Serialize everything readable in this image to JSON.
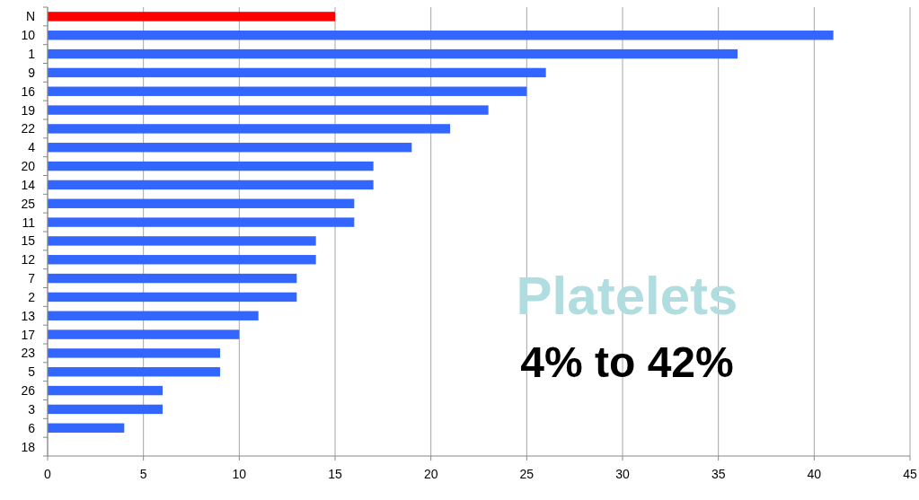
{
  "chart_data": {
    "type": "bar",
    "orientation": "horizontal",
    "categories": [
      "N",
      "10",
      "1",
      "9",
      "16",
      "19",
      "22",
      "4",
      "20",
      "14",
      "25",
      "11",
      "15",
      "12",
      "7",
      "2",
      "13",
      "17",
      "23",
      "5",
      "26",
      "3",
      "6",
      "18"
    ],
    "values": [
      15,
      41,
      36,
      26,
      25,
      23,
      21,
      19,
      17,
      17,
      16,
      16,
      14,
      14,
      13,
      13,
      11,
      10,
      9,
      9,
      6,
      6,
      4,
      0
    ],
    "colors": [
      "#ff0000",
      "#3366ff",
      "#3366ff",
      "#3366ff",
      "#3366ff",
      "#3366ff",
      "#3366ff",
      "#3366ff",
      "#3366ff",
      "#3366ff",
      "#3366ff",
      "#3366ff",
      "#3366ff",
      "#3366ff",
      "#3366ff",
      "#3366ff",
      "#3366ff",
      "#3366ff",
      "#3366ff",
      "#3366ff",
      "#3366ff",
      "#3366ff",
      "#3366ff",
      "#3366ff"
    ],
    "xlim": [
      0,
      45
    ],
    "xticks": [
      0,
      5,
      10,
      15,
      20,
      25,
      30,
      35,
      40,
      45
    ],
    "grid": "x",
    "annotations": [
      "Platelets",
      "4% to 42%"
    ]
  }
}
